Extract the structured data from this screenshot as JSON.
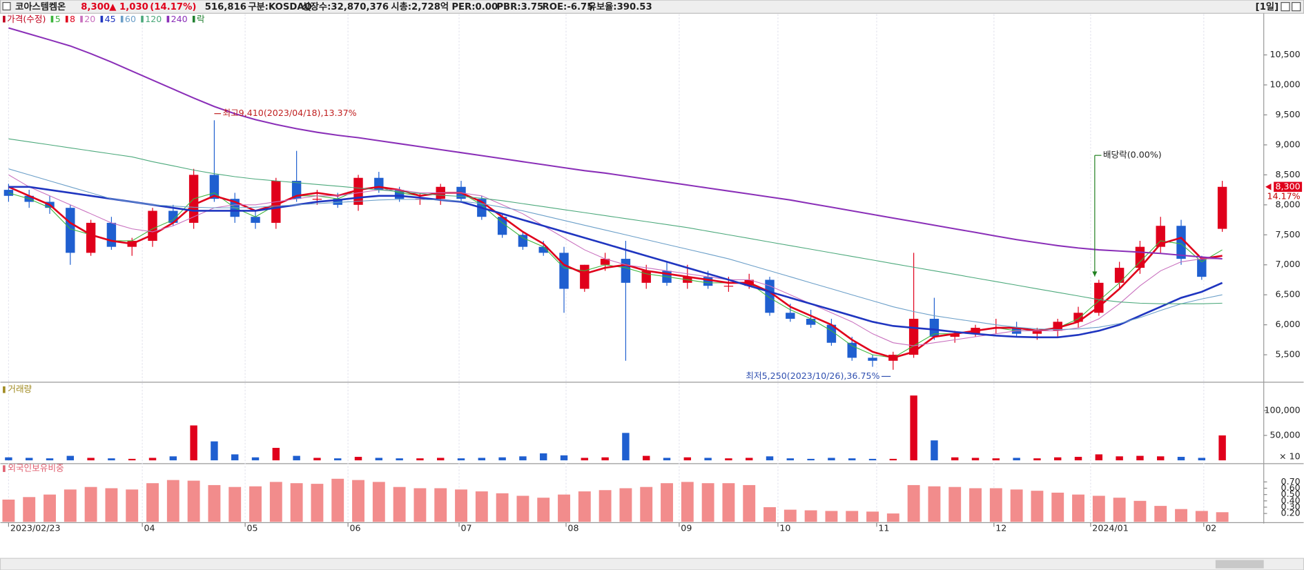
{
  "header": {
    "name": "코아스템켐온",
    "price": "8,300",
    "change": "▲ 1,030",
    "change_pct": "(14.17%)",
    "volume": "516,816",
    "market": "구분:KOSDAQ",
    "shares": "상장수:32,870,376",
    "market_cap": "시총:2,728억",
    "per": "PER:0.00",
    "pbr": "PBR:3.75",
    "roe": "ROE:-6.75",
    "reserve": "유보율:390.53",
    "period": "[1일]"
  },
  "chart_data": [
    {
      "type": "candlestick",
      "price_label": "가격(수정)",
      "split_label": "락",
      "change_label": "14.17%",
      "up_color": "#e0001b",
      "down_color": "#1f5fd0",
      "high_label": "최고9,410(2023/04/18),13.37%",
      "low_label": "최저5,250(2023/10/26),36.75%",
      "dividend": {
        "label": "배당락(0.00%)",
        "x": 52.8
      },
      "xlim": [
        -0.4,
        59.4
      ],
      "xticks": [
        {
          "value": 0,
          "label": "2023/02/23"
        },
        {
          "value": 6.5,
          "label": "04"
        },
        {
          "value": 11.5,
          "label": "05"
        },
        {
          "value": 16.5,
          "label": "06"
        },
        {
          "value": 21.9,
          "label": "07"
        },
        {
          "value": 27.1,
          "label": "08"
        },
        {
          "value": 32.6,
          "label": "09"
        },
        {
          "value": 37.4,
          "label": "10"
        },
        {
          "value": 42.2,
          "label": "11"
        },
        {
          "value": 47.9,
          "label": "12"
        },
        {
          "value": 52.6,
          "label": "2024/01"
        },
        {
          "value": 58.1,
          "label": "02"
        }
      ],
      "ylim": [
        5070,
        11180
      ],
      "yticks": [
        {
          "value": 5500,
          "label": "5,500"
        },
        {
          "value": 6000,
          "label": "6,000"
        },
        {
          "value": 6500,
          "label": "6,500"
        },
        {
          "value": 7000,
          "label": "7,000"
        },
        {
          "value": 7500,
          "label": "7,500"
        },
        {
          "value": 8000,
          "label": "8,000"
        },
        {
          "value": 8500,
          "label": "8,500"
        },
        {
          "value": 9000,
          "label": "9,000"
        },
        {
          "value": 9500,
          "label": "9,500"
        },
        {
          "value": 10000,
          "label": "10,000"
        },
        {
          "value": 10500,
          "label": "10,500"
        }
      ],
      "grid": true,
      "open": [
        8250,
        8150,
        8050,
        7950,
        7200,
        7700,
        7300,
        7400,
        7900,
        7700,
        8500,
        8100,
        7800,
        7700,
        8400,
        8100,
        8100,
        8000,
        8450,
        8250,
        8100,
        8100,
        8300,
        8100,
        7800,
        7500,
        7300,
        7200,
        6600,
        7000,
        7100,
        6700,
        6900,
        6700,
        6800,
        6650,
        6650,
        6750,
        6200,
        6100,
        6000,
        5700,
        5450,
        5400,
        5500,
        6100,
        5800,
        5850,
        5950,
        5950,
        5850,
        5900,
        6050,
        6200,
        6700,
        6950,
        7300,
        7650,
        7100,
        7600
      ],
      "high": [
        8350,
        8250,
        8150,
        8000,
        7750,
        7800,
        7450,
        7950,
        8000,
        8600,
        9410,
        8200,
        7900,
        8450,
        8900,
        8250,
        8200,
        8500,
        8550,
        8300,
        8200,
        8350,
        8400,
        8150,
        7850,
        7550,
        7400,
        7300,
        7000,
        7200,
        7400,
        7000,
        7050,
        7000,
        6900,
        6800,
        6850,
        6800,
        6350,
        6250,
        6100,
        5800,
        5500,
        5550,
        7200,
        6450,
        5900,
        6000,
        6100,
        6050,
        5950,
        6100,
        6300,
        6750,
        7050,
        7400,
        7800,
        7750,
        7150,
        8400
      ],
      "low": [
        8050,
        7950,
        7850,
        7000,
        7150,
        7250,
        7150,
        7300,
        7650,
        7600,
        8050,
        7700,
        7600,
        7600,
        8050,
        8000,
        7950,
        7900,
        8200,
        8050,
        8000,
        8000,
        8050,
        7750,
        7450,
        7250,
        7150,
        6200,
        6550,
        6900,
        5400,
        6600,
        6650,
        6600,
        6600,
        6550,
        6600,
        6150,
        6050,
        5950,
        5650,
        5400,
        5300,
        5250,
        5450,
        5750,
        5700,
        5800,
        5850,
        5800,
        5750,
        5800,
        5950,
        6150,
        6600,
        6850,
        7200,
        7000,
        6750,
        7550
      ],
      "close": [
        8150,
        8050,
        7950,
        7200,
        7700,
        7300,
        7400,
        7900,
        7700,
        8500,
        8100,
        7800,
        7700,
        8400,
        8100,
        8100,
        8000,
        8450,
        8250,
        8100,
        8100,
        8300,
        8100,
        7800,
        7500,
        7300,
        7200,
        6600,
        7000,
        7100,
        6700,
        6900,
        6700,
        6800,
        6650,
        6650,
        6750,
        6200,
        6100,
        6000,
        5700,
        5450,
        5400,
        5500,
        6100,
        5800,
        5850,
        5950,
        5950,
        5850,
        5900,
        6050,
        6200,
        6700,
        6950,
        7300,
        7650,
        7100,
        6800,
        8300
      ],
      "series": [
        {
          "name": "5",
          "color": "#3cb43c",
          "values": [
            8200,
            8100,
            7950,
            7600,
            7500,
            7400,
            7400,
            7600,
            7750,
            8100,
            8200,
            7950,
            7800,
            8000,
            8150,
            8150,
            8100,
            8250,
            8300,
            8200,
            8150,
            8200,
            8200,
            8000,
            7700,
            7450,
            7300,
            6950,
            6900,
            7000,
            6950,
            6850,
            6800,
            6750,
            6700,
            6700,
            6700,
            6450,
            6250,
            6100,
            5900,
            5650,
            5500,
            5450,
            5650,
            5850,
            5850,
            5900,
            5950,
            5900,
            5900,
            5950,
            6100,
            6400,
            6700,
            7050,
            7400,
            7350,
            7050,
            7250
          ]
        },
        {
          "name": "8",
          "color": "#e0001b",
          "values": [
            8300,
            8150,
            8000,
            7700,
            7500,
            7400,
            7350,
            7500,
            7700,
            8000,
            8150,
            8050,
            7900,
            8000,
            8150,
            8200,
            8150,
            8250,
            8300,
            8250,
            8150,
            8200,
            8200,
            8050,
            7800,
            7550,
            7350,
            7000,
            6850,
            6950,
            7000,
            6900,
            6850,
            6800,
            6750,
            6700,
            6700,
            6550,
            6300,
            6150,
            6000,
            5750,
            5550,
            5450,
            5550,
            5800,
            5850,
            5900,
            5950,
            5950,
            5900,
            5950,
            6050,
            6300,
            6600,
            6950,
            7350,
            7450,
            7100,
            7150
          ]
        },
        {
          "name": "20",
          "color": "#c86fbe",
          "values": [
            8500,
            8300,
            8150,
            8000,
            7850,
            7700,
            7600,
            7550,
            7650,
            7800,
            7950,
            8000,
            8000,
            8050,
            8100,
            8150,
            8150,
            8200,
            8250,
            8250,
            8200,
            8200,
            8200,
            8150,
            8000,
            7850,
            7650,
            7450,
            7250,
            7100,
            7000,
            6950,
            6900,
            6850,
            6800,
            6750,
            6750,
            6650,
            6500,
            6350,
            6200,
            6050,
            5850,
            5700,
            5650,
            5700,
            5750,
            5800,
            5850,
            5900,
            5900,
            5900,
            5950,
            6100,
            6350,
            6650,
            6900,
            7050,
            7100,
            7100
          ]
        },
        {
          "name": "45",
          "color": "#1f35c0",
          "values": [
            8300,
            8300,
            8250,
            8200,
            8150,
            8100,
            8050,
            8000,
            7950,
            7900,
            7900,
            7900,
            7900,
            7950,
            8000,
            8050,
            8080,
            8120,
            8150,
            8150,
            8120,
            8080,
            8050,
            7950,
            7850,
            7750,
            7650,
            7550,
            7450,
            7350,
            7250,
            7150,
            7050,
            6950,
            6850,
            6750,
            6650,
            6550,
            6450,
            6350,
            6250,
            6150,
            6050,
            5980,
            5950,
            5920,
            5880,
            5850,
            5820,
            5800,
            5790,
            5790,
            5830,
            5900,
            6000,
            6150,
            6300,
            6450,
            6550,
            6700
          ]
        },
        {
          "name": "60",
          "color": "#6a9ec8",
          "values": [
            8600,
            8500,
            8400,
            8300,
            8200,
            8100,
            8050,
            8000,
            7980,
            7960,
            7950,
            7950,
            7960,
            7980,
            8000,
            8020,
            8040,
            8060,
            8080,
            8090,
            8090,
            8080,
            8060,
            8020,
            7960,
            7900,
            7820,
            7740,
            7660,
            7580,
            7500,
            7420,
            7340,
            7260,
            7180,
            7100,
            7000,
            6900,
            6800,
            6700,
            6600,
            6500,
            6400,
            6300,
            6220,
            6150,
            6100,
            6050,
            6000,
            5960,
            5930,
            5920,
            5930,
            5960,
            6020,
            6120,
            6240,
            6350,
            6430,
            6500
          ]
        },
        {
          "name": "120",
          "color": "#4aa87a",
          "values": [
            9100,
            9050,
            9000,
            8950,
            8900,
            8850,
            8800,
            8720,
            8650,
            8580,
            8520,
            8470,
            8430,
            8400,
            8370,
            8340,
            8310,
            8280,
            8250,
            8220,
            8190,
            8160,
            8140,
            8110,
            8070,
            8020,
            7970,
            7920,
            7870,
            7820,
            7770,
            7720,
            7670,
            7620,
            7560,
            7500,
            7440,
            7380,
            7320,
            7260,
            7200,
            7140,
            7080,
            7020,
            6960,
            6900,
            6840,
            6780,
            6720,
            6660,
            6600,
            6540,
            6480,
            6420,
            6380,
            6360,
            6350,
            6350,
            6350,
            6360
          ]
        },
        {
          "name": "240",
          "color": "#8a2fb8",
          "values": [
            10950,
            10850,
            10750,
            10650,
            10520,
            10380,
            10230,
            10080,
            9930,
            9780,
            9640,
            9520,
            9420,
            9340,
            9270,
            9210,
            9160,
            9120,
            9070,
            9020,
            8970,
            8920,
            8870,
            8820,
            8770,
            8720,
            8670,
            8620,
            8570,
            8530,
            8480,
            8430,
            8380,
            8330,
            8280,
            8230,
            8180,
            8130,
            8080,
            8020,
            7960,
            7900,
            7840,
            7780,
            7720,
            7660,
            7600,
            7540,
            7480,
            7420,
            7370,
            7320,
            7280,
            7250,
            7230,
            7210,
            7190,
            7160,
            7130,
            7100
          ]
        }
      ]
    },
    {
      "type": "volume",
      "title": "거래량",
      "unit_label": "× 10",
      "ylim": [
        -3300,
        145000
      ],
      "yticks": [
        {
          "value": 100000,
          "label": "100,000"
        },
        {
          "value": 50000,
          "label": "50,000"
        }
      ],
      "values": [
        6000,
        5000,
        4000,
        9000,
        5000,
        4000,
        3000,
        5000,
        8000,
        70000,
        38000,
        12000,
        6000,
        25000,
        9000,
        5000,
        4000,
        7000,
        5000,
        4000,
        4000,
        5000,
        4000,
        5000,
        6000,
        8000,
        14000,
        10000,
        5000,
        6000,
        55000,
        9000,
        5000,
        6000,
        5000,
        4000,
        5000,
        8000,
        4000,
        3000,
        5000,
        4000,
        3000,
        3000,
        130000,
        40000,
        6000,
        5000,
        4000,
        5000,
        4000,
        6000,
        7000,
        12000,
        8000,
        9000,
        8000,
        7000,
        5000,
        50000
      ]
    },
    {
      "type": "bar",
      "title": "외국인보유비중",
      "color": "#f28c8c",
      "ylim": [
        0.068,
        0.937
      ],
      "yticks": [
        {
          "value": 0.7,
          "label": "0.70"
        },
        {
          "value": 0.6,
          "label": "0.60"
        },
        {
          "value": 0.5,
          "label": "0.50"
        },
        {
          "value": 0.4,
          "label": "0.40"
        },
        {
          "value": 0.3,
          "label": "0.30"
        },
        {
          "value": 0.2,
          "label": "0.20"
        }
      ],
      "values": [
        0.42,
        0.46,
        0.5,
        0.58,
        0.62,
        0.6,
        0.58,
        0.68,
        0.73,
        0.72,
        0.65,
        0.62,
        0.63,
        0.7,
        0.68,
        0.67,
        0.75,
        0.73,
        0.7,
        0.62,
        0.6,
        0.6,
        0.58,
        0.55,
        0.52,
        0.48,
        0.45,
        0.5,
        0.55,
        0.57,
        0.6,
        0.62,
        0.68,
        0.7,
        0.68,
        0.68,
        0.65,
        0.3,
        0.26,
        0.25,
        0.24,
        0.24,
        0.23,
        0.2,
        0.65,
        0.63,
        0.62,
        0.6,
        0.6,
        0.58,
        0.56,
        0.53,
        0.5,
        0.48,
        0.45,
        0.4,
        0.32,
        0.27,
        0.24,
        0.22
      ]
    }
  ]
}
